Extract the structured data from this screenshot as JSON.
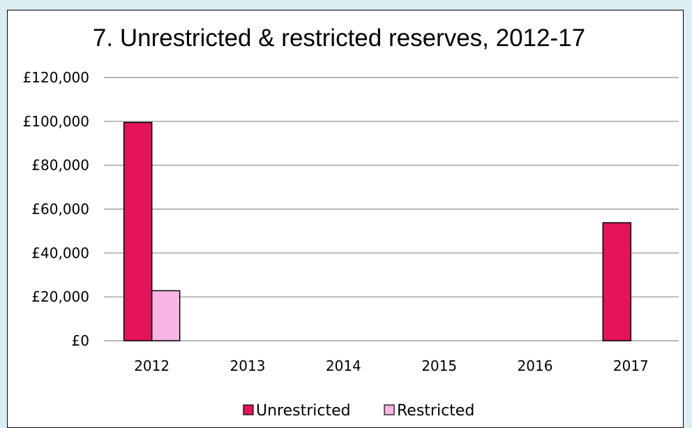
{
  "chart_data": {
    "type": "bar",
    "title": "7. Unrestricted & restricted reserves, 2012-17",
    "xlabel": "",
    "ylabel": "",
    "categories": [
      "2012",
      "2013",
      "2014",
      "2015",
      "2016",
      "2017"
    ],
    "series": [
      {
        "name": "Unrestricted",
        "values": [
          99500,
          0,
          0,
          0,
          0,
          53800
        ],
        "color": "#e5135b"
      },
      {
        "name": "Restricted",
        "values": [
          22800,
          0,
          0,
          0,
          0,
          0
        ],
        "color": "#f9b5e3"
      }
    ],
    "ylim": [
      0,
      120000
    ],
    "yticks": [
      "£0",
      "£20,000",
      "£40,000",
      "£60,000",
      "£80,000",
      "£100,000",
      "£120,000"
    ],
    "grid": true,
    "legend": "bottom"
  }
}
